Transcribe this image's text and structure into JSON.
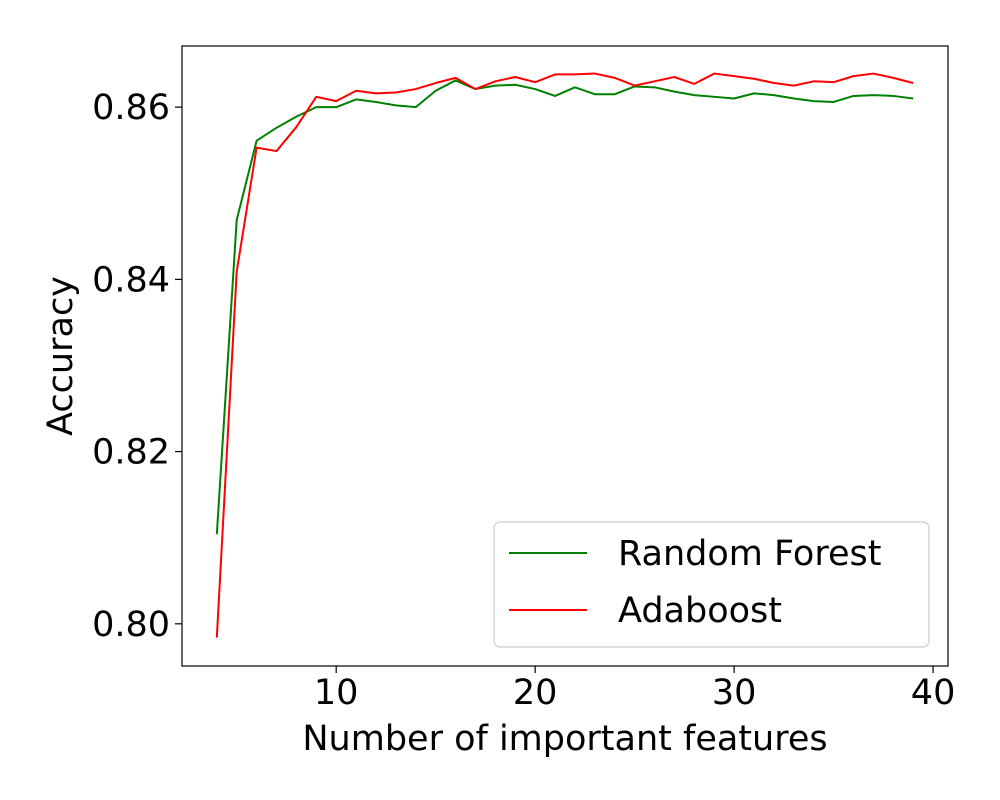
{
  "chart_data": {
    "type": "line",
    "title": "",
    "xlabel": "Number of important features",
    "ylabel": "Accuracy",
    "xlim": [
      2.25,
      40.75
    ],
    "ylim": [
      0.7951,
      0.8671
    ],
    "xticks": [
      10,
      20,
      30,
      40
    ],
    "xtick_labels": [
      "10",
      "20",
      "30",
      "40"
    ],
    "yticks": [
      0.8,
      0.82,
      0.84,
      0.86
    ],
    "ytick_labels": [
      "0.80",
      "0.82",
      "0.84",
      "0.86"
    ],
    "grid": false,
    "legend": {
      "placement": "lower-right"
    },
    "x": [
      4,
      5,
      6,
      7,
      8,
      9,
      10,
      11,
      12,
      13,
      14,
      15,
      16,
      17,
      18,
      19,
      20,
      21,
      22,
      23,
      24,
      25,
      26,
      27,
      28,
      29,
      30,
      31,
      32,
      33,
      34,
      35,
      36,
      37,
      38,
      39
    ],
    "series": [
      {
        "name": "Random Forest",
        "color": "#008000",
        "values": [
          0.8104,
          0.8469,
          0.8561,
          0.8576,
          0.8589,
          0.86,
          0.86,
          0.8609,
          0.8606,
          0.8602,
          0.86,
          0.8619,
          0.8631,
          0.8621,
          0.8625,
          0.8626,
          0.8621,
          0.8613,
          0.8623,
          0.8615,
          0.8615,
          0.8624,
          0.8623,
          0.8618,
          0.8614,
          0.8612,
          0.861,
          0.8616,
          0.8614,
          0.861,
          0.8607,
          0.8606,
          0.8613,
          0.8614,
          0.8613,
          0.861
        ]
      },
      {
        "name": "Adaboost",
        "color": "#ff0000",
        "values": [
          0.7984,
          0.8409,
          0.8553,
          0.8549,
          0.8577,
          0.8612,
          0.8607,
          0.8619,
          0.8616,
          0.8617,
          0.8621,
          0.8628,
          0.8634,
          0.8621,
          0.863,
          0.8635,
          0.8629,
          0.8638,
          0.8638,
          0.8639,
          0.8634,
          0.8625,
          0.863,
          0.8635,
          0.8627,
          0.8639,
          0.8636,
          0.8633,
          0.8628,
          0.8625,
          0.863,
          0.8629,
          0.8636,
          0.8639,
          0.8634,
          0.8628
        ]
      }
    ]
  }
}
